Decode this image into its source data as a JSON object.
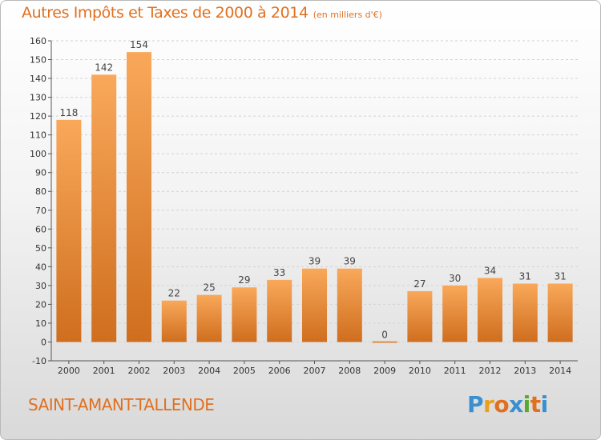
{
  "header": {
    "title": "Autres Impôts et Taxes de 2000 à 2014",
    "unit": "(en milliers d'€)"
  },
  "footer": {
    "place": "SAINT-AMANT-TALLENDE",
    "logo": [
      "P",
      "r",
      "o",
      "x",
      "i",
      "t",
      "i"
    ],
    "logo_colors": [
      "#3a8fd0",
      "#e8a020",
      "#e07020",
      "#3a8fd0",
      "#5aa830",
      "#e07020",
      "#3a8fd0"
    ]
  },
  "colors": {
    "bar_light": "#f9a85a",
    "bar_dark": "#cf6e1e",
    "accent": "#e07020"
  },
  "chart_data": {
    "type": "bar",
    "title": "Autres Impôts et Taxes de 2000 à 2014",
    "xlabel": "",
    "ylabel": "",
    "categories": [
      "2000",
      "2001",
      "2002",
      "2003",
      "2004",
      "2005",
      "2006",
      "2007",
      "2008",
      "2009",
      "2010",
      "2011",
      "2012",
      "2013",
      "2014"
    ],
    "values": [
      118,
      142,
      154,
      22,
      25,
      29,
      33,
      39,
      39,
      0,
      27,
      30,
      34,
      31,
      31
    ],
    "ylim": [
      -10,
      160
    ],
    "yticks": [
      -10,
      0,
      10,
      20,
      30,
      40,
      50,
      60,
      70,
      80,
      90,
      100,
      110,
      120,
      130,
      140,
      150,
      160
    ],
    "grid": "horizontal"
  }
}
